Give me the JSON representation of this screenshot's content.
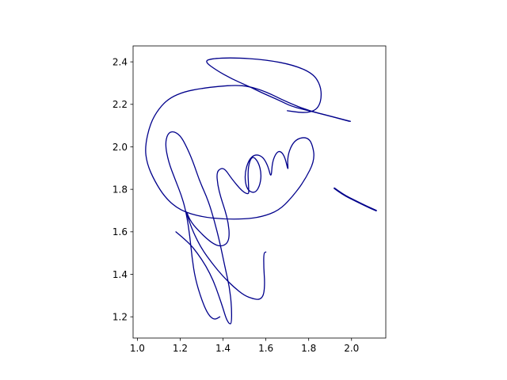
{
  "chart_data": {
    "type": "line",
    "title": "",
    "xlabel": "",
    "ylabel": "",
    "xlim": [
      0.98,
      2.16
    ],
    "ylim": [
      1.1,
      2.475
    ],
    "grid": false,
    "legend": "none",
    "line_color": "#00008b",
    "x_ticks": [
      {
        "value": 1.0,
        "label": "1.0"
      },
      {
        "value": 1.2,
        "label": "1.2"
      },
      {
        "value": 1.4,
        "label": "1.4"
      },
      {
        "value": 1.6,
        "label": "1.6"
      },
      {
        "value": 1.8,
        "label": "1.8"
      },
      {
        "value": 2.0,
        "label": "2.0"
      }
    ],
    "y_ticks": [
      {
        "value": 1.2,
        "label": "1.2"
      },
      {
        "value": 1.4,
        "label": "1.4"
      },
      {
        "value": 1.6,
        "label": "1.6"
      },
      {
        "value": 1.8,
        "label": "1.8"
      },
      {
        "value": 2.0,
        "label": "2.0"
      },
      {
        "value": 2.2,
        "label": "2.2"
      },
      {
        "value": 2.4,
        "label": "2.4"
      }
    ],
    "series": [
      {
        "width": 1.3,
        "points": [
          [
            1.995,
            2.12
          ],
          [
            1.9,
            2.145
          ],
          [
            1.8,
            2.17
          ],
          [
            1.7,
            2.21
          ],
          [
            1.6,
            2.26
          ],
          [
            1.52,
            2.285
          ],
          [
            1.46,
            2.29
          ],
          [
            1.38,
            2.285
          ],
          [
            1.3,
            2.275
          ],
          [
            1.22,
            2.26
          ],
          [
            1.15,
            2.23
          ],
          [
            1.1,
            2.18
          ],
          [
            1.06,
            2.11
          ],
          [
            1.035,
            2.0
          ],
          [
            1.045,
            1.92
          ],
          [
            1.08,
            1.84
          ],
          [
            1.13,
            1.76
          ],
          [
            1.2,
            1.7
          ],
          [
            1.3,
            1.67
          ],
          [
            1.4,
            1.66
          ],
          [
            1.5,
            1.66
          ],
          [
            1.58,
            1.67
          ],
          [
            1.66,
            1.7
          ],
          [
            1.72,
            1.76
          ],
          [
            1.78,
            1.84
          ],
          [
            1.83,
            1.94
          ],
          [
            1.815,
            2.02
          ],
          [
            1.79,
            2.045
          ],
          [
            1.75,
            2.04
          ],
          [
            1.72,
            2.01
          ],
          [
            1.7,
            1.95
          ],
          [
            1.705,
            1.88
          ],
          [
            1.69,
            1.95
          ],
          [
            1.67,
            1.98
          ],
          [
            1.65,
            1.975
          ],
          [
            1.63,
            1.93
          ],
          [
            1.625,
            1.85
          ],
          [
            1.61,
            1.91
          ],
          [
            1.585,
            1.955
          ],
          [
            1.55,
            1.965
          ],
          [
            1.52,
            1.94
          ],
          [
            1.5,
            1.87
          ],
          [
            1.51,
            1.8
          ],
          [
            1.545,
            1.78
          ],
          [
            1.57,
            1.81
          ],
          [
            1.58,
            1.87
          ],
          [
            1.565,
            1.93
          ],
          [
            1.535,
            1.96
          ],
          [
            1.515,
            1.9
          ],
          [
            1.52,
            1.8
          ],
          [
            1.52,
            1.775
          ],
          [
            1.49,
            1.79
          ],
          [
            1.44,
            1.85
          ],
          [
            1.41,
            1.895
          ],
          [
            1.39,
            1.9
          ],
          [
            1.37,
            1.88
          ],
          [
            1.375,
            1.82
          ],
          [
            1.39,
            1.76
          ],
          [
            1.41,
            1.7
          ],
          [
            1.425,
            1.64
          ],
          [
            1.43,
            1.58
          ],
          [
            1.42,
            1.545
          ],
          [
            1.39,
            1.53
          ],
          [
            1.35,
            1.545
          ],
          [
            1.3,
            1.59
          ],
          [
            1.25,
            1.645
          ],
          [
            1.225,
            1.705
          ],
          [
            1.235,
            1.67
          ],
          [
            1.26,
            1.6
          ],
          [
            1.3,
            1.52
          ],
          [
            1.35,
            1.45
          ],
          [
            1.4,
            1.39
          ],
          [
            1.45,
            1.34
          ],
          [
            1.5,
            1.3
          ],
          [
            1.54,
            1.285
          ],
          [
            1.57,
            1.28
          ],
          [
            1.59,
            1.3
          ],
          [
            1.595,
            1.36
          ],
          [
            1.59,
            1.43
          ],
          [
            1.59,
            1.5
          ],
          [
            1.6,
            1.505
          ]
        ]
      },
      {
        "width": 1.3,
        "points": [
          [
            1.99,
            2.12
          ],
          [
            1.9,
            2.145
          ],
          [
            1.8,
            2.17
          ],
          [
            1.72,
            2.19
          ],
          [
            1.66,
            2.22
          ],
          [
            1.58,
            2.255
          ],
          [
            1.52,
            2.285
          ],
          [
            1.44,
            2.32
          ],
          [
            1.37,
            2.36
          ],
          [
            1.315,
            2.4
          ],
          [
            1.34,
            2.415
          ],
          [
            1.45,
            2.42
          ],
          [
            1.6,
            2.41
          ],
          [
            1.73,
            2.385
          ],
          [
            1.82,
            2.345
          ],
          [
            1.855,
            2.29
          ],
          [
            1.86,
            2.23
          ],
          [
            1.845,
            2.185
          ],
          [
            1.815,
            2.165
          ],
          [
            1.77,
            2.16
          ],
          [
            1.7,
            2.17
          ]
        ]
      },
      {
        "width": 1.3,
        "points": [
          [
            1.18,
            1.6
          ],
          [
            1.24,
            1.55
          ],
          [
            1.28,
            1.5
          ],
          [
            1.32,
            1.44
          ],
          [
            1.355,
            1.37
          ],
          [
            1.38,
            1.3
          ],
          [
            1.4,
            1.24
          ],
          [
            1.415,
            1.19
          ],
          [
            1.43,
            1.165
          ],
          [
            1.44,
            1.17
          ],
          [
            1.44,
            1.25
          ],
          [
            1.43,
            1.34
          ],
          [
            1.41,
            1.43
          ],
          [
            1.385,
            1.55
          ],
          [
            1.36,
            1.65
          ],
          [
            1.33,
            1.75
          ],
          [
            1.29,
            1.84
          ],
          [
            1.26,
            1.93
          ],
          [
            1.23,
            2.0
          ],
          [
            1.2,
            2.055
          ],
          [
            1.165,
            2.075
          ],
          [
            1.14,
            2.06
          ],
          [
            1.13,
            2.01
          ],
          [
            1.145,
            1.93
          ],
          [
            1.175,
            1.85
          ],
          [
            1.21,
            1.76
          ],
          [
            1.23,
            1.68
          ],
          [
            1.245,
            1.58
          ],
          [
            1.255,
            1.48
          ],
          [
            1.27,
            1.38
          ],
          [
            1.3,
            1.28
          ],
          [
            1.33,
            1.21
          ],
          [
            1.36,
            1.185
          ],
          [
            1.385,
            1.2
          ]
        ]
      },
      {
        "width": 2.0,
        "points": [
          [
            1.92,
            1.805
          ],
          [
            1.96,
            1.775
          ],
          [
            2.02,
            1.745
          ],
          [
            2.07,
            1.72
          ],
          [
            2.115,
            1.7
          ]
        ]
      }
    ]
  }
}
